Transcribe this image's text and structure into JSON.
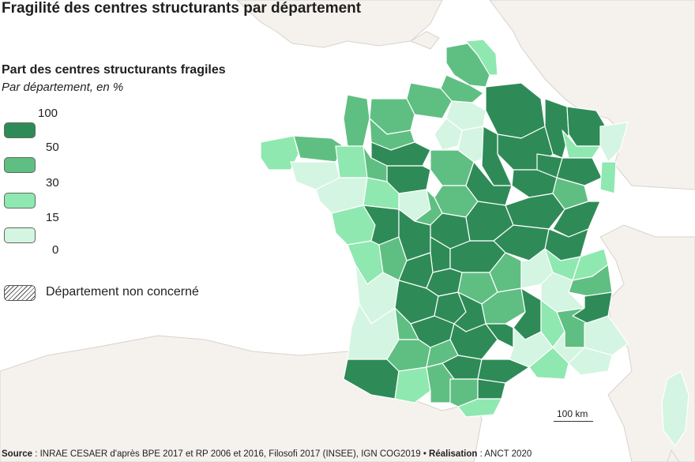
{
  "title": "Fragilité des centres structurants par département",
  "legend": {
    "title": "Part des centres structurants fragiles",
    "subtitle": "Par département, en %",
    "breaks": [
      "100",
      "50",
      "30",
      "15",
      "0"
    ],
    "classes": [
      {
        "range": "50–100",
        "color": "#2e8b57"
      },
      {
        "range": "30–50",
        "color": "#5fbf82"
      },
      {
        "range": "15–30",
        "color": "#8fe8b0"
      },
      {
        "range": "0–15",
        "color": "#d4f5e1"
      }
    ],
    "not_concerned_label": "Département non concerné"
  },
  "scale": {
    "label": "100 km"
  },
  "source": {
    "label": "Source",
    "text": " : INRAE CESAER d'après BPE 2017 et RP 2006 et 2016, Filosofi 2017 (INSEE), IGN COG2019",
    "credit_label": "Réalisation",
    "credit_text": " : ANCT 2020"
  },
  "colors": {
    "sea": "#ffffff",
    "land_abroad": "#f5f2ee",
    "border": "#ffffff"
  }
}
